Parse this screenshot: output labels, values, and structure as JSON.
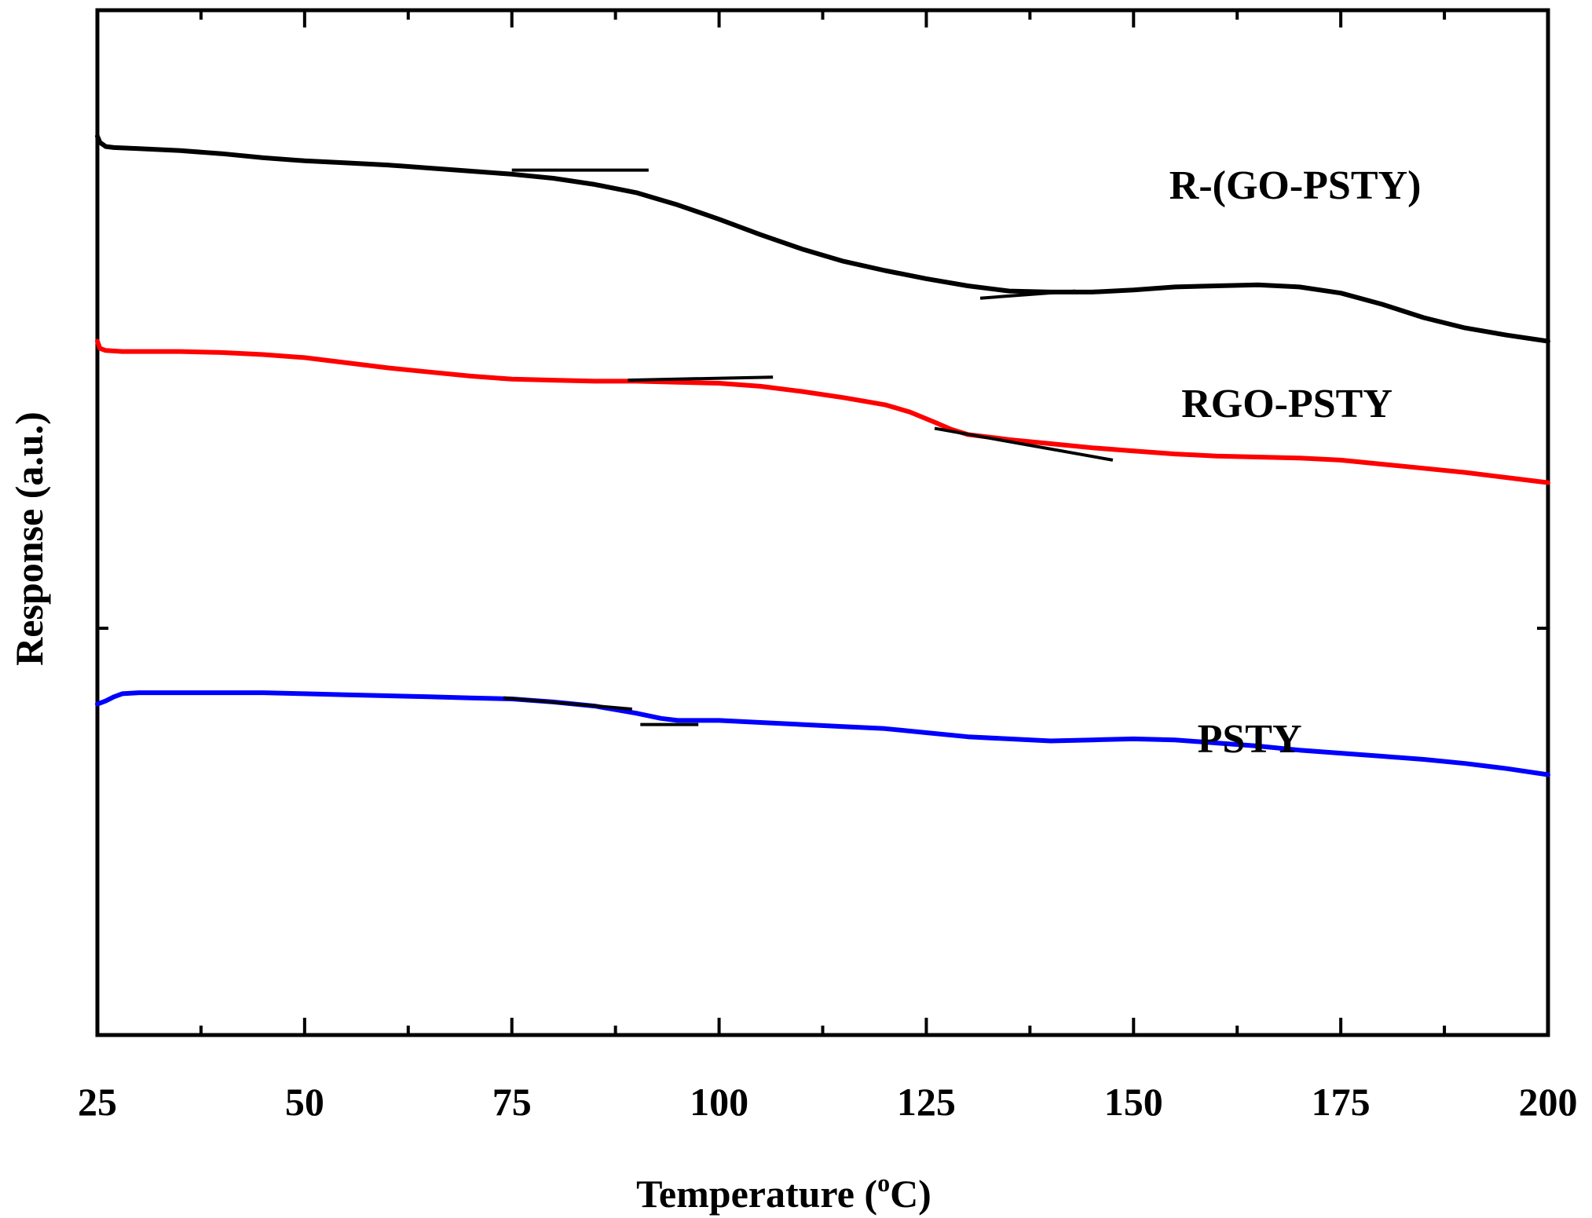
{
  "chart_data": {
    "type": "line",
    "title": "",
    "xlabel": "Temperature (",
    "xlabel_sup": "o",
    "xlabel_tail": "C)",
    "ylabel": "Response (a.u.)",
    "xlim": [
      25,
      200
    ],
    "ylim": [
      0,
      100
    ],
    "xticks": [
      25,
      50,
      75,
      100,
      125,
      150,
      175,
      200
    ],
    "xtick_labels": [
      "25",
      "50",
      "75",
      "100",
      "125",
      "150",
      "175",
      "200"
    ],
    "series": [
      {
        "name": "R-(GO-PSTY)",
        "color": "#000000",
        "x": [
          25,
          25.3,
          26,
          27,
          30,
          35,
          40,
          45,
          50,
          55,
          60,
          65,
          70,
          75,
          80,
          85,
          90,
          95,
          100,
          105,
          110,
          115,
          120,
          125,
          130,
          135,
          140,
          145,
          150,
          155,
          160,
          165,
          170,
          175,
          180,
          185,
          190,
          195,
          200
        ],
        "y": [
          87.7,
          87.1,
          86.7,
          86.6,
          86.5,
          86.3,
          86.0,
          85.6,
          85.3,
          85.1,
          84.9,
          84.6,
          84.3,
          84.0,
          83.6,
          83.0,
          82.2,
          81.0,
          79.6,
          78.1,
          76.7,
          75.5,
          74.6,
          73.8,
          73.1,
          72.6,
          72.5,
          72.5,
          72.7,
          73.0,
          73.1,
          73.2,
          73.0,
          72.4,
          71.3,
          70.0,
          69.0,
          68.3,
          67.7
        ]
      },
      {
        "name": "RGO-PSTY",
        "color": "#ff0000",
        "x": [
          25,
          25.3,
          26,
          28,
          30,
          35,
          40,
          45,
          50,
          55,
          60,
          65,
          70,
          75,
          80,
          85,
          90,
          95,
          100,
          105,
          110,
          115,
          120,
          123,
          126,
          128,
          130,
          135,
          140,
          145,
          150,
          155,
          160,
          165,
          170,
          175,
          180,
          185,
          190,
          195,
          200
        ],
        "y": [
          67.7,
          67.0,
          66.8,
          66.7,
          66.7,
          66.7,
          66.6,
          66.4,
          66.1,
          65.6,
          65.1,
          64.7,
          64.3,
          64.0,
          63.9,
          63.8,
          63.8,
          63.7,
          63.6,
          63.3,
          62.8,
          62.2,
          61.5,
          60.8,
          59.8,
          59.1,
          58.6,
          58.1,
          57.7,
          57.3,
          57.0,
          56.7,
          56.5,
          56.4,
          56.3,
          56.1,
          55.7,
          55.3,
          54.9,
          54.4,
          53.9
        ]
      },
      {
        "name": "PSTY",
        "color": "#0000ff",
        "x": [
          25,
          26,
          27,
          28,
          30,
          35,
          40,
          45,
          50,
          55,
          60,
          65,
          70,
          75,
          80,
          85,
          90,
          93,
          95,
          100,
          105,
          110,
          115,
          120,
          125,
          130,
          135,
          140,
          145,
          150,
          155,
          160,
          165,
          170,
          175,
          180,
          185,
          190,
          195,
          200
        ],
        "y": [
          32.3,
          32.6,
          33.0,
          33.3,
          33.4,
          33.4,
          33.4,
          33.4,
          33.3,
          33.2,
          33.1,
          33.0,
          32.9,
          32.8,
          32.5,
          32.1,
          31.4,
          30.9,
          30.7,
          30.7,
          30.5,
          30.3,
          30.1,
          29.9,
          29.5,
          29.1,
          28.9,
          28.7,
          28.8,
          28.9,
          28.8,
          28.5,
          28.2,
          27.8,
          27.5,
          27.2,
          26.9,
          26.5,
          26.0,
          25.4
        ]
      }
    ],
    "tangent_lines": [
      {
        "series": "R-(GO-PSTY)",
        "x1": 75,
        "y1": 84.4,
        "x2": 91.5,
        "y2": 84.4
      },
      {
        "series": "R-(GO-PSTY)",
        "x1": 131.5,
        "y1": 71.9,
        "x2": 143,
        "y2": 72.6
      },
      {
        "series": "RGO-PSTY",
        "x1": 89,
        "y1": 63.9,
        "x2": 106.5,
        "y2": 64.2
      },
      {
        "series": "RGO-PSTY",
        "x1": 126,
        "y1": 59.2,
        "x2": 147.5,
        "y2": 56.1
      },
      {
        "series": "PSTY",
        "x1": 74,
        "y1": 32.9,
        "x2": 89.5,
        "y2": 31.8
      },
      {
        "series": "PSTY",
        "x1": 90.5,
        "y1": 30.3,
        "x2": 97.5,
        "y2": 30.3
      }
    ],
    "annotations": [
      {
        "text": "R-(GO-PSTY)",
        "x": 169.5,
        "y": 81.6
      },
      {
        "text": "RGO-PSTY",
        "x": 168.5,
        "y": 60.3
      },
      {
        "text": "PSTY",
        "x": 164,
        "y": 27.6
      }
    ],
    "legend": "none",
    "grid": false
  }
}
